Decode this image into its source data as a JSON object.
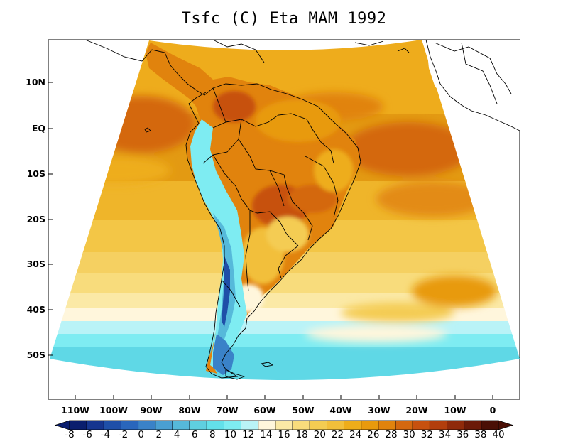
{
  "title": "Tsfc (C) Eta MAM 1992",
  "map": {
    "variable": "Tsfc",
    "unit": "C",
    "model": "Eta",
    "season": "MAM",
    "year": "1992",
    "lat_ticks": [
      "10N",
      "EQ",
      "10S",
      "20S",
      "30S",
      "40S",
      "50S"
    ],
    "lon_ticks": [
      "110W",
      "100W",
      "90W",
      "80W",
      "70W",
      "60W",
      "50W",
      "40W",
      "30W",
      "20W",
      "10W",
      "0"
    ]
  },
  "colorbar": {
    "labels": [
      "-8",
      "-6",
      "-4",
      "-2",
      "0",
      "2",
      "4",
      "6",
      "8",
      "10",
      "12",
      "14",
      "16",
      "18",
      "20",
      "22",
      "24",
      "26",
      "28",
      "30",
      "32",
      "34",
      "36",
      "38",
      "40"
    ],
    "colors": [
      "#0a1e6e",
      "#16358f",
      "#1f4fa8",
      "#2a66bc",
      "#3a82c8",
      "#4a9fd2",
      "#56b9da",
      "#5fcfe0",
      "#63e0ea",
      "#7eecf2",
      "#b9f3f7",
      "#fff6dc",
      "#fbe9a6",
      "#f8dc7c",
      "#f4cc52",
      "#f2bf3b",
      "#eead1a",
      "#e89a0d",
      "#e1830d",
      "#d4680f",
      "#c7510e",
      "#b23e0d",
      "#8f2a0a",
      "#6b1a08",
      "#4a0f05"
    ]
  }
}
